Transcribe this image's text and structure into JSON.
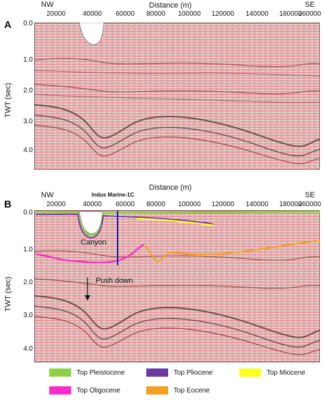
{
  "panels": [
    {
      "label": "A",
      "dir_left": "NW",
      "dir_right": "SE",
      "xlabel": "Distance (m)",
      "ylabel": "TWT (sec)",
      "xticks": [
        "20000",
        "40000",
        "60000",
        "80000",
        "100000",
        "120000",
        "140000",
        "180000",
        "260000"
      ],
      "yticks": [
        "0.0",
        "1.0",
        "2.0",
        "3.0",
        "4.0"
      ]
    },
    {
      "label": "B",
      "dir_left": "NW",
      "dir_right": "SE",
      "xlabel": "Distance (m)",
      "ylabel": "TWT (sec)",
      "xticks": [
        "20000",
        "40000",
        "60000",
        "80000",
        "100000",
        "120000",
        "140000",
        "180000",
        "260000"
      ],
      "yticks": [
        "0.0",
        "1.0",
        "2.0",
        "3.0",
        "4.0"
      ],
      "well_label": "Indus Marine-1C",
      "annotations": [
        "Canyon",
        "Push down"
      ]
    }
  ],
  "legend": [
    {
      "label": "Top Pleistocene",
      "color": "#8ed04a"
    },
    {
      "label": "Top Pliocene",
      "color": "#6a3aa0"
    },
    {
      "label": "Top Miocene",
      "color": "#ffff22"
    },
    {
      "label": "Top Oligocene",
      "color": "#ff2bc8"
    },
    {
      "label": "Top Eocene",
      "color": "#f5a020"
    }
  ]
}
